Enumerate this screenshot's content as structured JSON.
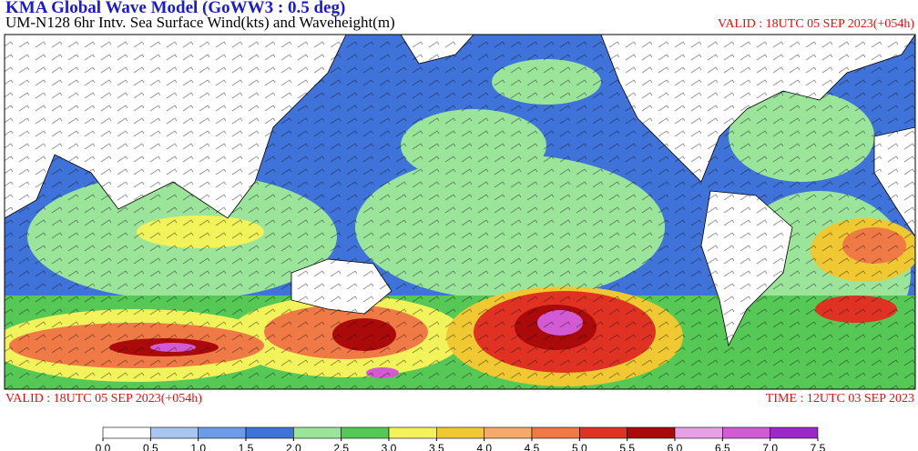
{
  "header": {
    "title": "KMA  Global Wave Model (GoWW3 : 0.5 deg)",
    "subtitle": "UM-N128  6hr Intv. Sea Surface Wind(kts) and Waveheight(m)",
    "valid_top": "VALID : 18UTC 05 SEP 2023(+054h)"
  },
  "footer": {
    "valid": "VALID : 18UTC 05 SEP 2023(+054h)",
    "time": "TIME : 12UTC 03 SEP 2023"
  },
  "colorbar": {
    "colors": [
      "#ffffff",
      "#a8c6ee",
      "#6e9be6",
      "#3f73d9",
      "#9be59b",
      "#55c855",
      "#f2f25a",
      "#f0c832",
      "#f5a96a",
      "#ef7a45",
      "#e03222",
      "#aa0a0a",
      "#e6a0e6",
      "#d25ad2",
      "#9b28c8"
    ],
    "ticks": [
      {
        "value": 0,
        "label": "0.0"
      },
      {
        "value": 0.5,
        "label": "0.5"
      },
      {
        "value": 1,
        "label": "1.0"
      },
      {
        "value": 1.5,
        "label": "1.5"
      },
      {
        "value": 2,
        "label": "2.0"
      },
      {
        "value": 2.5,
        "label": "2.5"
      },
      {
        "value": 3,
        "label": "3.0"
      },
      {
        "value": 3.5,
        "label": "3.5"
      },
      {
        "value": 4,
        "label": "4.0"
      },
      {
        "value": 4.5,
        "label": "4.5"
      },
      {
        "value": 5,
        "label": "5.0"
      },
      {
        "value": 5.5,
        "label": "5.5"
      },
      {
        "value": 6,
        "label": "6.0"
      },
      {
        "value": 6.5,
        "label": "6.5"
      },
      {
        "value": 7,
        "label": "7.0"
      },
      {
        "value": 7.5,
        "label": "7.5"
      }
    ]
  }
}
